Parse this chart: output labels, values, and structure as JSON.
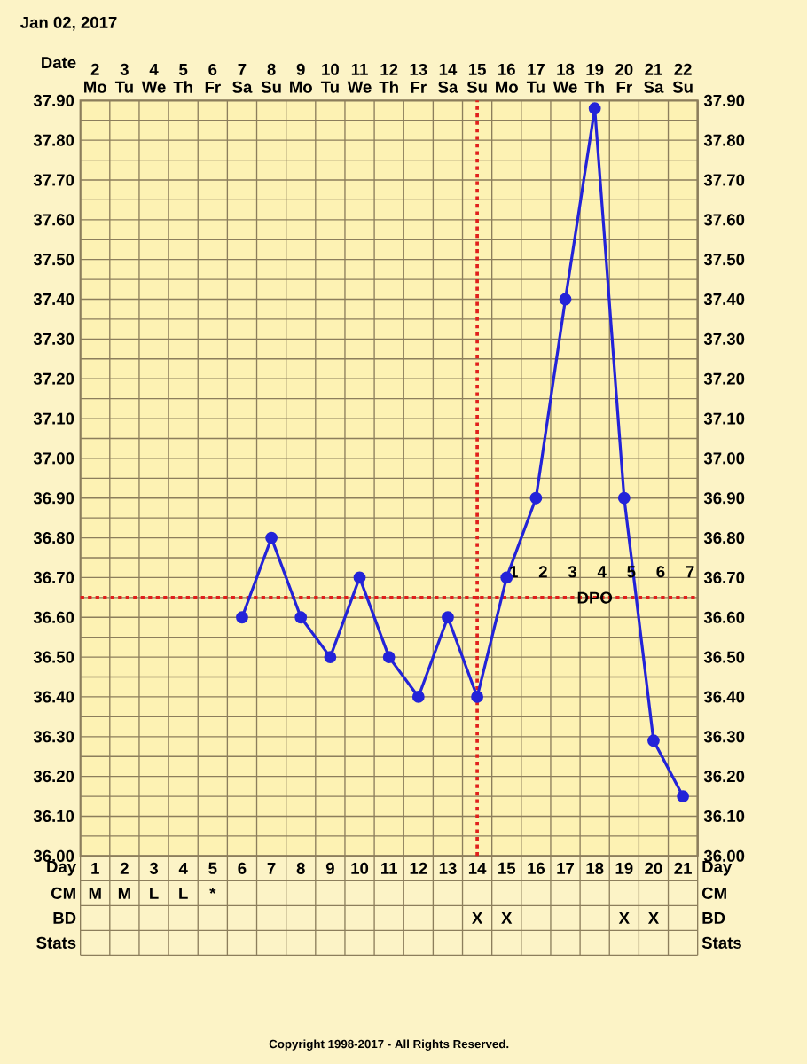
{
  "chart_data": {
    "type": "line",
    "title": "Jan 02, 2017",
    "xlabel": "Day",
    "categories": [
      "1",
      "2",
      "3",
      "4",
      "5",
      "6",
      "7",
      "8",
      "9",
      "10",
      "11",
      "12",
      "13",
      "14",
      "15",
      "16",
      "17",
      "18",
      "19",
      "20",
      "21"
    ],
    "series": [
      {
        "color": "#2323d8",
        "values": [
          null,
          null,
          null,
          null,
          null,
          36.6,
          36.8,
          36.6,
          36.5,
          36.7,
          36.5,
          36.4,
          36.6,
          36.4,
          36.7,
          36.9,
          37.4,
          37.88,
          36.9,
          36.29,
          36.15
        ]
      }
    ],
    "marker": "circle",
    "grid": true,
    "ylim": [
      36.0,
      37.9
    ],
    "yticks": [
      {
        "value": 36.0,
        "label": "36.00"
      },
      {
        "value": 36.1,
        "label": "36.10"
      },
      {
        "value": 36.2,
        "label": "36.20"
      },
      {
        "value": 36.3,
        "label": "36.30"
      },
      {
        "value": 36.4,
        "label": "36.40"
      },
      {
        "value": 36.5,
        "label": "36.50"
      },
      {
        "value": 36.6,
        "label": "36.60"
      },
      {
        "value": 36.7,
        "label": "36.70"
      },
      {
        "value": 36.8,
        "label": "36.80"
      },
      {
        "value": 36.9,
        "label": "36.90"
      },
      {
        "value": 37.0,
        "label": "37.00"
      },
      {
        "value": 37.1,
        "label": "37.10"
      },
      {
        "value": 37.2,
        "label": "37.20"
      },
      {
        "value": 37.3,
        "label": "37.30"
      },
      {
        "value": 37.4,
        "label": "37.40"
      },
      {
        "value": 37.5,
        "label": "37.50"
      },
      {
        "value": 37.6,
        "label": "37.60"
      },
      {
        "value": 37.7,
        "label": "37.70"
      },
      {
        "value": 37.8,
        "label": "37.80"
      },
      {
        "value": 37.9,
        "label": "37.90"
      }
    ],
    "y2lim": [
      36.0,
      37.9
    ],
    "y2ticks": [
      {
        "value": 36.0,
        "label": "36.00"
      },
      {
        "value": 36.1,
        "label": "36.10"
      },
      {
        "value": 36.2,
        "label": "36.20"
      },
      {
        "value": 36.3,
        "label": "36.30"
      },
      {
        "value": 36.4,
        "label": "36.40"
      },
      {
        "value": 36.5,
        "label": "36.50"
      },
      {
        "value": 36.6,
        "label": "36.60"
      },
      {
        "value": 36.7,
        "label": "36.70"
      },
      {
        "value": 36.8,
        "label": "36.80"
      },
      {
        "value": 36.9,
        "label": "36.90"
      },
      {
        "value": 37.0,
        "label": "37.00"
      },
      {
        "value": 37.1,
        "label": "37.10"
      },
      {
        "value": 37.2,
        "label": "37.20"
      },
      {
        "value": 37.3,
        "label": "37.30"
      },
      {
        "value": 37.4,
        "label": "37.40"
      },
      {
        "value": 37.5,
        "label": "37.50"
      },
      {
        "value": 37.6,
        "label": "37.60"
      },
      {
        "value": 37.7,
        "label": "37.70"
      },
      {
        "value": 37.8,
        "label": "37.80"
      },
      {
        "value": 37.9,
        "label": "37.90"
      }
    ],
    "ref_lines": [
      {
        "axis": "y",
        "value": 36.65,
        "color": "#e0201c",
        "line_style": "dotted"
      },
      {
        "axis": "x",
        "value": "14",
        "color": "#e0201c",
        "line_style": "dotted"
      }
    ],
    "annotations": [
      "Date",
      "2 Mo",
      "3 Tu",
      "4 We",
      "5 Th",
      "6 Fr",
      "7 Sa",
      "8 Su",
      "9 Mo",
      "10 Tu",
      "11 We",
      "12 Th",
      "13 Fr",
      "14 Sa",
      "15 Su",
      "16 Mo",
      "17 Tu",
      "18 We",
      "19 Th",
      "20 Fr",
      "21 Sa",
      "22 Su",
      "DPO",
      null,
      null,
      null,
      null,
      null,
      null,
      null,
      null,
      null,
      null,
      null,
      null,
      null,
      null,
      "1",
      "2",
      "3",
      "4",
      "5",
      "6",
      "7",
      "CM",
      "M",
      "M",
      "L",
      "L",
      "*",
      null,
      null,
      null,
      null,
      null,
      null,
      null,
      null,
      null,
      null,
      null,
      null,
      null,
      null,
      null,
      null,
      "BD",
      null,
      null,
      null,
      null,
      null,
      null,
      null,
      null,
      null,
      null,
      null,
      null,
      null,
      "X",
      "X",
      null,
      null,
      null,
      "X",
      "X",
      null,
      "Stats",
      null,
      null,
      null,
      null,
      null,
      null,
      null,
      null,
      null,
      null,
      null,
      null,
      null,
      null,
      null,
      null,
      null,
      null,
      null,
      null,
      null,
      "Copyright 1998-2017 - All Rights Reserved."
    ]
  }
}
